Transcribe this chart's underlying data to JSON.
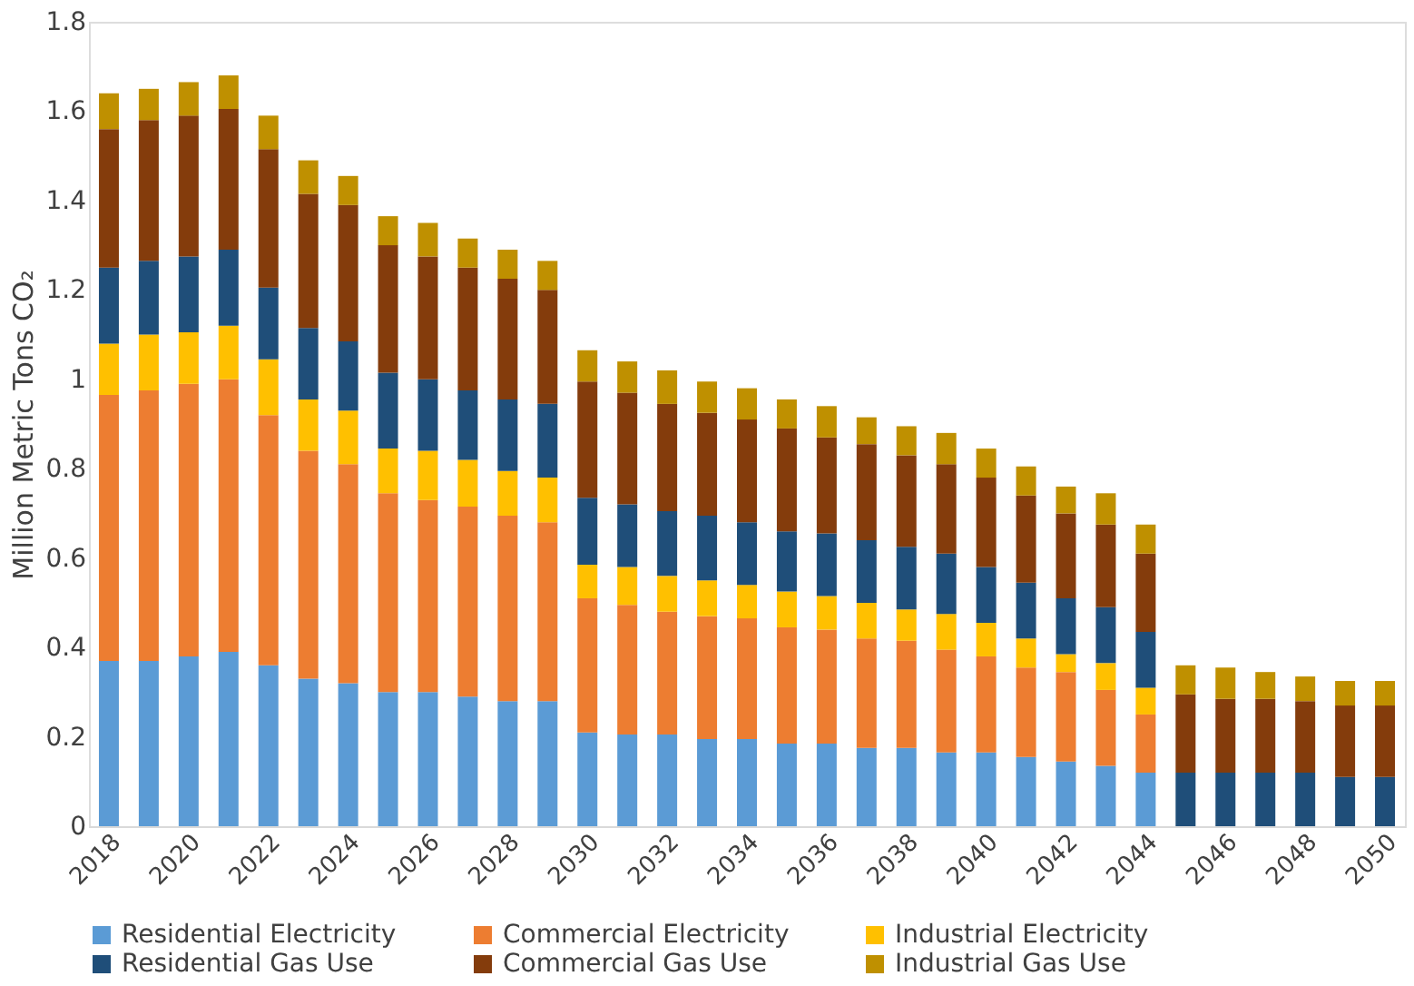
{
  "chart_data": {
    "type": "bar",
    "stacked": true,
    "ylabel": "Million Metric Tons CO₂",
    "categories": [
      "2018",
      null,
      "2020",
      null,
      "2022",
      null,
      "2024",
      null,
      "2026",
      null,
      "2028",
      null,
      "2030",
      null,
      "2032",
      null,
      "2034",
      null,
      "2036",
      null,
      "2038",
      null,
      "2040",
      null,
      "2042",
      null,
      "2044",
      null,
      "2046",
      null,
      "2048",
      null,
      "2050"
    ],
    "ylim": [
      0,
      1.8
    ],
    "yticks": [
      0,
      0.2,
      0.4,
      0.6,
      0.8,
      1,
      1.2,
      1.4,
      1.6,
      1.8
    ],
    "grid": false,
    "legend": "bottom",
    "series": [
      {
        "name": "Residential Electricity",
        "color": "#5b9bd5",
        "values": [
          0.37,
          0.37,
          0.38,
          0.39,
          0.36,
          0.33,
          0.32,
          0.3,
          0.3,
          0.29,
          0.28,
          0.28,
          0.21,
          0.205,
          0.205,
          0.195,
          0.195,
          0.185,
          0.185,
          0.175,
          0.175,
          0.165,
          0.165,
          0.155,
          0.145,
          0.135,
          0.12,
          0,
          0,
          0,
          0,
          0,
          0
        ]
      },
      {
        "name": "Commercial Electricity",
        "color": "#ed7d31",
        "values": [
          0.595,
          0.605,
          0.61,
          0.61,
          0.56,
          0.51,
          0.49,
          0.445,
          0.43,
          0.425,
          0.415,
          0.4,
          0.3,
          0.29,
          0.275,
          0.275,
          0.27,
          0.26,
          0.255,
          0.245,
          0.24,
          0.23,
          0.215,
          0.2,
          0.2,
          0.17,
          0.13,
          0,
          0,
          0,
          0,
          0,
          0
        ]
      },
      {
        "name": "Industrial Electricity",
        "color": "#ffc000",
        "values": [
          0.115,
          0.125,
          0.115,
          0.12,
          0.125,
          0.115,
          0.12,
          0.1,
          0.11,
          0.105,
          0.1,
          0.1,
          0.075,
          0.085,
          0.08,
          0.08,
          0.075,
          0.08,
          0.075,
          0.08,
          0.07,
          0.08,
          0.075,
          0.065,
          0.04,
          0.06,
          0.06,
          0,
          0,
          0,
          0,
          0,
          0
        ]
      },
      {
        "name": "Residential Gas Use",
        "color": "#1f4e79",
        "values": [
          0.17,
          0.165,
          0.17,
          0.17,
          0.16,
          0.16,
          0.155,
          0.17,
          0.16,
          0.155,
          0.16,
          0.165,
          0.15,
          0.14,
          0.145,
          0.145,
          0.14,
          0.135,
          0.14,
          0.14,
          0.14,
          0.135,
          0.125,
          0.125,
          0.125,
          0.125,
          0.125,
          0.12,
          0.12,
          0.12,
          0.12,
          0.11,
          0.11
        ]
      },
      {
        "name": "Commercial Gas Use",
        "color": "#843c0c",
        "values": [
          0.31,
          0.315,
          0.315,
          0.315,
          0.31,
          0.3,
          0.305,
          0.285,
          0.275,
          0.275,
          0.27,
          0.255,
          0.26,
          0.25,
          0.24,
          0.23,
          0.23,
          0.23,
          0.215,
          0.215,
          0.205,
          0.2,
          0.2,
          0.195,
          0.19,
          0.185,
          0.175,
          0.175,
          0.165,
          0.165,
          0.16,
          0.16,
          0.16
        ]
      },
      {
        "name": "Industrial Gas Use",
        "color": "#bf9000",
        "values": [
          0.08,
          0.07,
          0.075,
          0.075,
          0.075,
          0.075,
          0.065,
          0.065,
          0.075,
          0.065,
          0.065,
          0.065,
          0.07,
          0.07,
          0.075,
          0.07,
          0.07,
          0.065,
          0.07,
          0.06,
          0.065,
          0.07,
          0.065,
          0.065,
          0.06,
          0.07,
          0.065,
          0.065,
          0.07,
          0.06,
          0.055,
          0.055,
          0.055
        ]
      }
    ]
  }
}
